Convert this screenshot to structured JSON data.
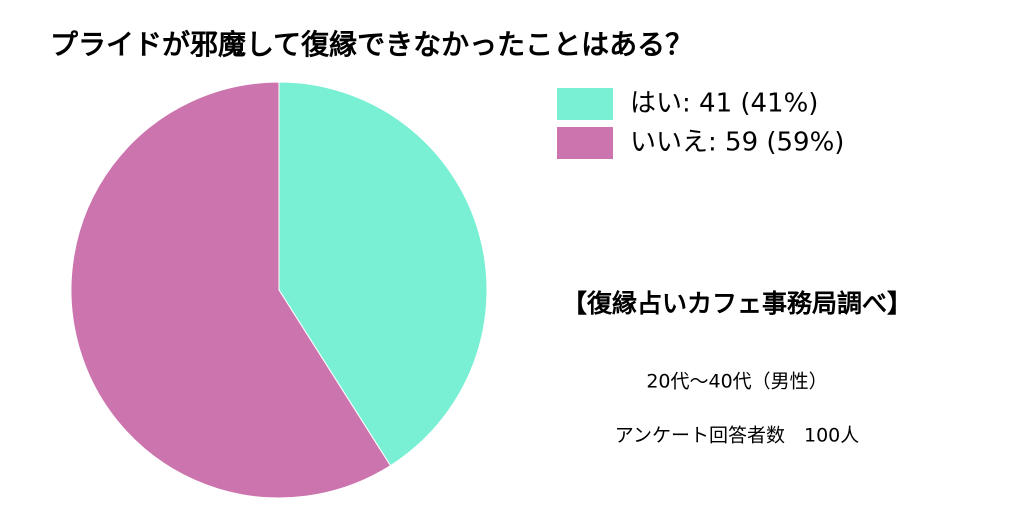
{
  "chart_data": {
    "type": "pie",
    "title": "プライドが邪魔して復縁できなかったことはある？",
    "categories": [
      "はい: 41 (41%)",
      "いいえ: 59 (59%)"
    ],
    "values": [
      41,
      59
    ],
    "colors": [
      "#79f0d4",
      "#cc74ae"
    ],
    "annotations": [
      "【復縁占いカフェ事務局調べ】",
      "20代〜40代（男性）",
      "アンケート回答者数　100人"
    ]
  }
}
